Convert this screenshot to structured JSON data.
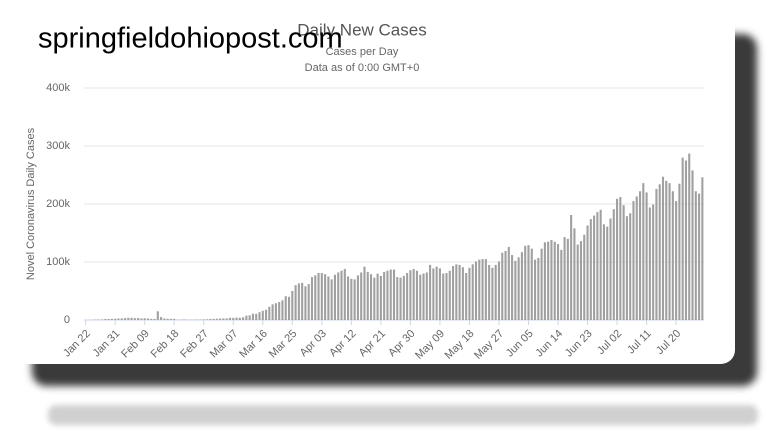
{
  "watermark": "springfieldohiopost.com",
  "chart_data": {
    "type": "bar",
    "title": "Daily New Cases",
    "subtitle": "Cases per Day",
    "note": "Data as of 0:00 GMT+0",
    "y_label": "Novel Coronavirus Daily Cases",
    "color": "#a0a0a0",
    "grid": true,
    "ylim": [
      0,
      400000
    ],
    "yticks": [
      0,
      {
        "value": 100000,
        "label": "100k"
      },
      {
        "value": 200000,
        "label": "200k"
      },
      {
        "value": 300000,
        "label": "300k"
      },
      {
        "value": 400000,
        "label": "400k"
      }
    ],
    "categories": [
      "Jan 22",
      null,
      null,
      null,
      null,
      null,
      null,
      null,
      null,
      "Jan 31",
      null,
      null,
      null,
      null,
      null,
      null,
      null,
      null,
      "Feb 09",
      null,
      null,
      null,
      null,
      null,
      null,
      null,
      null,
      "Feb 18",
      null,
      null,
      null,
      null,
      null,
      null,
      null,
      null,
      "Feb 27",
      null,
      null,
      null,
      null,
      null,
      null,
      null,
      null,
      "Mar 07",
      null,
      null,
      null,
      null,
      null,
      null,
      null,
      null,
      "Mar 16",
      null,
      null,
      null,
      null,
      null,
      null,
      null,
      null,
      "Mar 25",
      null,
      null,
      null,
      null,
      null,
      null,
      null,
      null,
      "Apr 03",
      null,
      null,
      null,
      null,
      null,
      null,
      null,
      null,
      "Apr 12",
      null,
      null,
      null,
      null,
      null,
      null,
      null,
      null,
      "Apr 21",
      null,
      null,
      null,
      null,
      null,
      null,
      null,
      null,
      "Apr 30",
      null,
      null,
      null,
      null,
      null,
      null,
      null,
      null,
      "May 09",
      null,
      null,
      null,
      null,
      null,
      null,
      null,
      null,
      "May 18",
      null,
      null,
      null,
      null,
      null,
      null,
      null,
      null,
      "May 27",
      null,
      null,
      null,
      null,
      null,
      null,
      null,
      null,
      "Jun 05",
      null,
      null,
      null,
      null,
      null,
      null,
      null,
      null,
      "Jun 14",
      null,
      null,
      null,
      null,
      null,
      null,
      null,
      null,
      "Jun 23",
      null,
      null,
      null,
      null,
      null,
      null,
      null,
      null,
      "Jul 02",
      null,
      null,
      null,
      null,
      null,
      null,
      null,
      null,
      "Jul 11",
      null,
      null,
      null,
      null,
      null,
      null,
      null,
      null,
      "Jul 20",
      null,
      null,
      null,
      null,
      null,
      null,
      null,
      null
    ],
    "values": [
      100,
      150,
      250,
      700,
      800,
      1000,
      1700,
      1700,
      2000,
      2100,
      2600,
      2800,
      3200,
      3900,
      3700,
      3200,
      3400,
      2700,
      3000,
      2500,
      2000,
      1800,
      15000,
      5000,
      2600,
      2200,
      2000,
      1900,
      500,
      600,
      1000,
      600,
      500,
      600,
      900,
      800,
      1000,
      1200,
      1800,
      2000,
      2300,
      2600,
      2700,
      2700,
      3800,
      3700,
      4200,
      4000,
      4600,
      7500,
      8000,
      10900,
      10700,
      13400,
      15900,
      17600,
      22800,
      27000,
      29000,
      31000,
      34000,
      41000,
      40000,
      50000,
      60000,
      63000,
      64000,
      58000,
      62000,
      74000,
      77000,
      81000,
      81000,
      79000,
      75000,
      70000,
      78000,
      82000,
      85000,
      88000,
      75000,
      71000,
      70000,
      77000,
      82000,
      92000,
      83000,
      79000,
      73000,
      80000,
      76000,
      83000,
      85000,
      87000,
      87000,
      74000,
      73000,
      76000,
      81000,
      86000,
      88000,
      85000,
      78000,
      80000,
      82000,
      95000,
      89000,
      92000,
      89000,
      80000,
      81000,
      85000,
      93000,
      96000,
      95000,
      91000,
      81000,
      90000,
      96000,
      101000,
      104000,
      105000,
      105000,
      95000,
      90000,
      95000,
      101000,
      116000,
      119000,
      126000,
      112000,
      102000,
      108000,
      117000,
      128000,
      129000,
      123000,
      104000,
      107000,
      123000,
      134000,
      135000,
      138000,
      135000,
      131000,
      121000,
      143000,
      140000,
      181000,
      158000,
      130000,
      136000,
      147000,
      163000,
      174000,
      180000,
      186000,
      190000,
      165000,
      161000,
      175000,
      191000,
      209000,
      212000,
      198000,
      179000,
      184000,
      205000,
      213000,
      222000,
      236000,
      220000,
      194000,
      199000,
      226000,
      234000,
      247000,
      240000,
      236000,
      222000,
      205000,
      235000,
      280000,
      275000,
      287000,
      258000,
      222000,
      218000,
      246000
    ]
  }
}
